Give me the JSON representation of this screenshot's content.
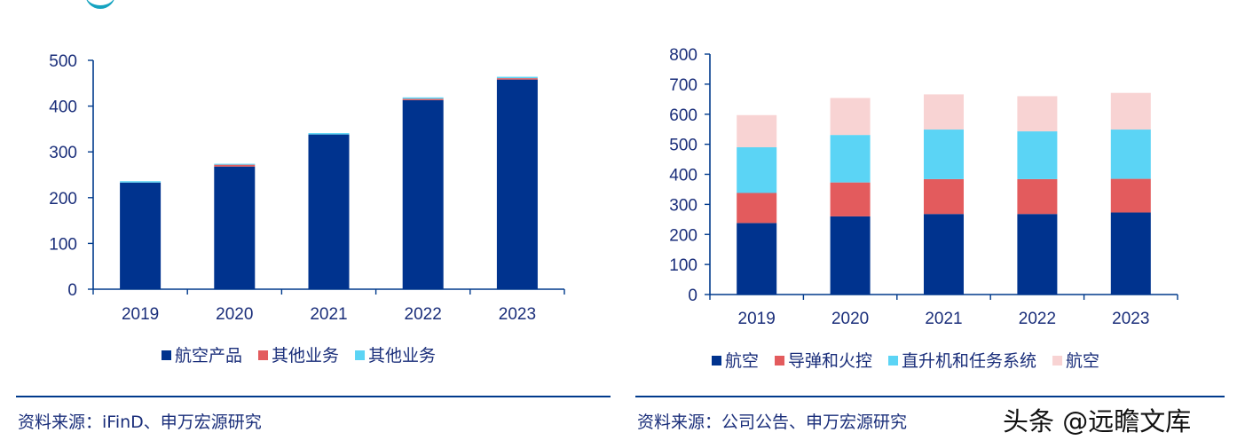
{
  "chart_data": [
    {
      "type": "bar",
      "stacked": true,
      "categories": [
        "2019",
        "2020",
        "2021",
        "2022",
        "2023"
      ],
      "series": [
        {
          "name": "航空产品",
          "values": [
            233,
            268,
            338,
            413,
            458
          ],
          "color": "#00338e"
        },
        {
          "name": "其他业务",
          "values": [
            0,
            4,
            0,
            3,
            3
          ],
          "color": "#e35b5d"
        },
        {
          "name": "其他业务",
          "values": [
            3,
            2,
            3,
            3,
            3
          ],
          "color": "#5bd4f5"
        }
      ],
      "ylim": [
        0,
        500
      ],
      "yticks": [
        "0",
        "100",
        "200",
        "300",
        "400",
        "500"
      ],
      "grid": false,
      "legend_position": "bottom",
      "title": "",
      "xlabel": "",
      "ylabel": ""
    },
    {
      "type": "bar",
      "stacked": true,
      "categories": [
        "2019",
        "2020",
        "2021",
        "2022",
        "2023"
      ],
      "series": [
        {
          "name": "航空",
          "values": [
            238,
            260,
            268,
            268,
            273
          ],
          "color": "#00338e"
        },
        {
          "name": "导弹和火控",
          "values": [
            100,
            113,
            116,
            116,
            112
          ],
          "color": "#e35b5d"
        },
        {
          "name": "直升机和任务系统",
          "values": [
            152,
            158,
            165,
            159,
            164
          ],
          "color": "#5bd4f5"
        },
        {
          "name": "航空",
          "values": [
            107,
            123,
            117,
            117,
            122
          ],
          "color": "#f8d3d3"
        }
      ],
      "ylim": [
        0,
        800
      ],
      "yticks": [
        "0",
        "100",
        "200",
        "300",
        "400",
        "500",
        "600",
        "700",
        "800"
      ],
      "grid": false,
      "legend_position": "bottom",
      "title": "",
      "xlabel": "",
      "ylabel": ""
    }
  ],
  "sources": {
    "left": "资料来源：iFinD、申万宏源研究",
    "right": "资料来源：公司公告、申万宏源研究"
  },
  "watermark": "头条 @远瞻文库"
}
